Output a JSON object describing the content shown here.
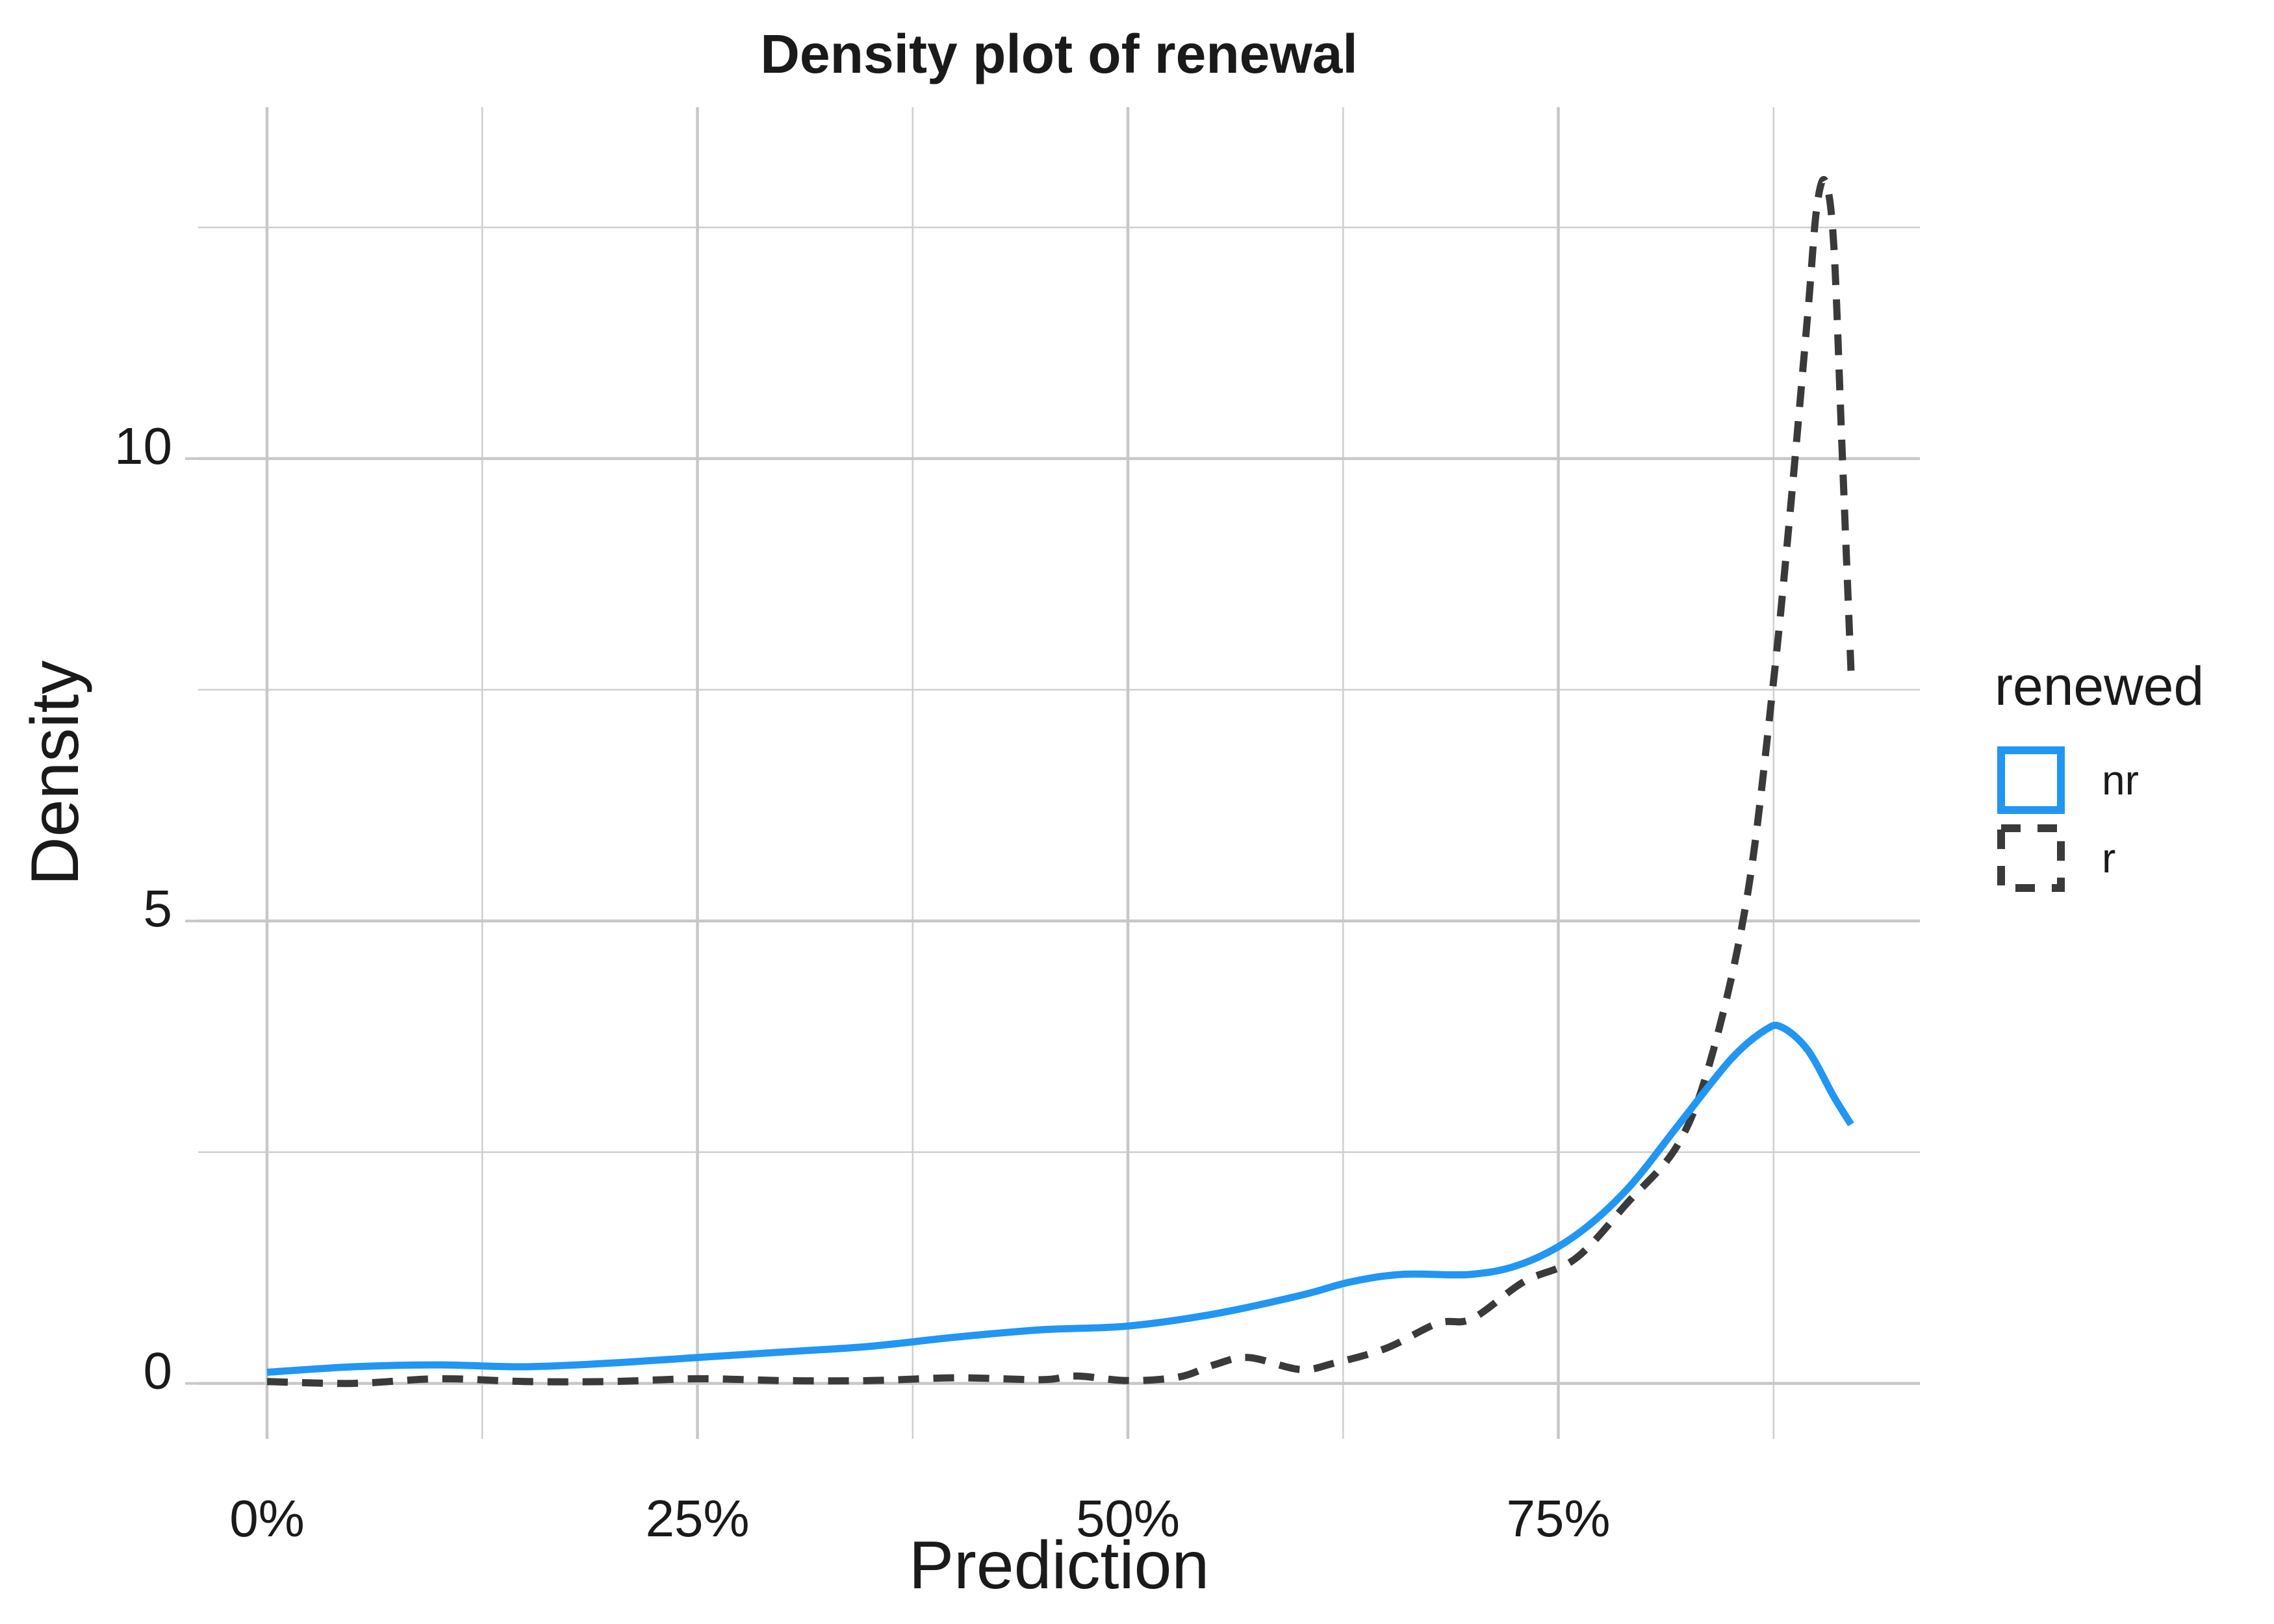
{
  "chart_data": {
    "type": "line",
    "title": "Density plot of renewal",
    "xlabel": "Prediction",
    "ylabel": "Density",
    "xlim": [
      -0.04,
      0.96
    ],
    "ylim": [
      -0.6,
      13.8
    ],
    "x_ticks": [
      0,
      0.25,
      0.5,
      0.75
    ],
    "x_tick_labels": [
      "0%",
      "25%",
      "50%",
      "75%"
    ],
    "y_ticks": [
      0,
      5,
      10
    ],
    "y_tick_labels": [
      "0",
      "5",
      "10"
    ],
    "grid": true,
    "legend": {
      "title": "renewed",
      "position": "right"
    },
    "series": [
      {
        "name": "nr",
        "color": "#2196f3",
        "line_style": "solid",
        "points": [
          [
            0.0,
            0.12
          ],
          [
            0.05,
            0.18
          ],
          [
            0.1,
            0.2
          ],
          [
            0.15,
            0.18
          ],
          [
            0.2,
            0.22
          ],
          [
            0.25,
            0.28
          ],
          [
            0.3,
            0.34
          ],
          [
            0.35,
            0.4
          ],
          [
            0.4,
            0.5
          ],
          [
            0.45,
            0.58
          ],
          [
            0.5,
            0.62
          ],
          [
            0.55,
            0.75
          ],
          [
            0.6,
            0.95
          ],
          [
            0.63,
            1.1
          ],
          [
            0.66,
            1.18
          ],
          [
            0.7,
            1.18
          ],
          [
            0.73,
            1.3
          ],
          [
            0.76,
            1.6
          ],
          [
            0.79,
            2.1
          ],
          [
            0.82,
            2.8
          ],
          [
            0.85,
            3.5
          ],
          [
            0.87,
            3.82
          ],
          [
            0.88,
            3.85
          ],
          [
            0.895,
            3.6
          ],
          [
            0.91,
            3.1
          ],
          [
            0.92,
            2.8
          ]
        ]
      },
      {
        "name": "r",
        "color": "#3a3a3a",
        "line_style": "dashed",
        "points": [
          [
            0.0,
            0.02
          ],
          [
            0.05,
            0.0
          ],
          [
            0.1,
            0.05
          ],
          [
            0.15,
            0.02
          ],
          [
            0.2,
            0.02
          ],
          [
            0.25,
            0.05
          ],
          [
            0.3,
            0.03
          ],
          [
            0.35,
            0.03
          ],
          [
            0.4,
            0.06
          ],
          [
            0.45,
            0.04
          ],
          [
            0.47,
            0.08
          ],
          [
            0.5,
            0.03
          ],
          [
            0.53,
            0.07
          ],
          [
            0.55,
            0.2
          ],
          [
            0.57,
            0.28
          ],
          [
            0.6,
            0.15
          ],
          [
            0.62,
            0.22
          ],
          [
            0.65,
            0.38
          ],
          [
            0.68,
            0.65
          ],
          [
            0.7,
            0.7
          ],
          [
            0.73,
            1.1
          ],
          [
            0.76,
            1.35
          ],
          [
            0.79,
            1.95
          ],
          [
            0.82,
            2.6
          ],
          [
            0.84,
            3.6
          ],
          [
            0.86,
            5.3
          ],
          [
            0.875,
            7.6
          ],
          [
            0.885,
            9.5
          ],
          [
            0.895,
            11.6
          ],
          [
            0.9,
            12.7
          ],
          [
            0.905,
            13.0
          ],
          [
            0.91,
            12.3
          ],
          [
            0.915,
            10.0
          ],
          [
            0.92,
            7.7
          ]
        ]
      }
    ]
  }
}
